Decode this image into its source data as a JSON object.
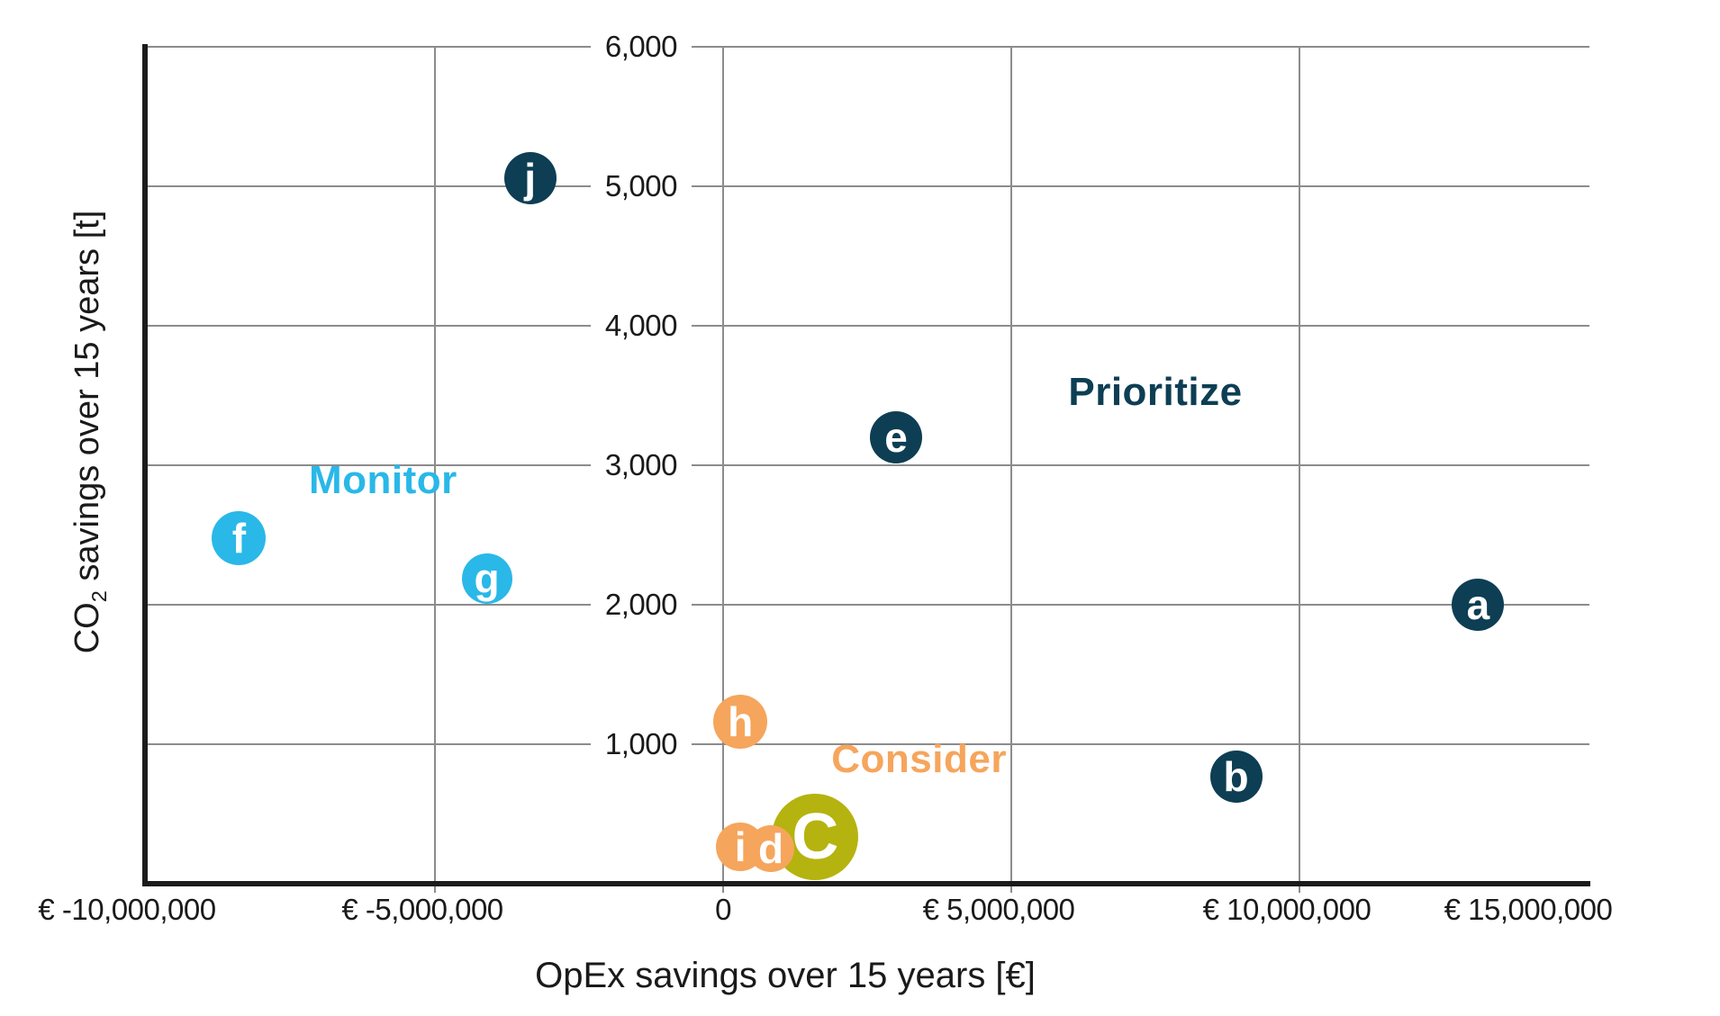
{
  "chart_data": {
    "type": "scatter",
    "title": "",
    "xlabel": "OpEx savings over 15 years [€]",
    "ylabel": {
      "prefix": "CO",
      "sub": "2",
      "suffix": " savings over 15 years [t]"
    },
    "xlim": [
      -10000000,
      15000000
    ],
    "ylim": [
      0,
      6000
    ],
    "grid": true,
    "legend": "none",
    "colors": {
      "prioritize": "#0d3e54",
      "monitor": "#29b8e8",
      "consider": "#f6a55c",
      "highlight": "#b5b30f",
      "gridline": "#8c8c8c",
      "axis": "#1b1b1b",
      "text": "#1a1a1a"
    },
    "x_ticks": [
      {
        "value": -10000000,
        "label": "€ -10,000,000",
        "gridline": false
      },
      {
        "value": -5000000,
        "label": "€ -5,000,000",
        "gridline": true
      },
      {
        "value": 0,
        "label": "0",
        "gridline": true
      },
      {
        "value": 5000000,
        "label": "€ 5,000,000",
        "gridline": true
      },
      {
        "value": 10000000,
        "label": "€ 10,000,000",
        "gridline": true
      },
      {
        "value": 15000000,
        "label": "€ 15,000,000",
        "gridline": false
      }
    ],
    "y_ticks": [
      {
        "value": 6000,
        "label": "6,000"
      },
      {
        "value": 5000,
        "label": "5,000"
      },
      {
        "value": 4000,
        "label": "4,000"
      },
      {
        "value": 3000,
        "label": "3,000"
      },
      {
        "value": 2000,
        "label": "2,000"
      },
      {
        "value": 1000,
        "label": "1,000"
      }
    ],
    "quadrant_labels": [
      {
        "text": "Monitor",
        "color": "#29b8e8",
        "x": -5900000,
        "y": 2890
      },
      {
        "text": "Prioritize",
        "color": "#0d3e54",
        "x": 7500000,
        "y": 3520
      },
      {
        "text": "Consider",
        "color": "#f6a55c",
        "x": 3400000,
        "y": 890
      }
    ],
    "points": [
      {
        "id": "a",
        "x": 13100000,
        "y": 2000,
        "color": "#0d3e54",
        "r": 29,
        "large": false
      },
      {
        "id": "b",
        "x": 8900000,
        "y": 770,
        "color": "#0d3e54",
        "r": 29,
        "large": false
      },
      {
        "id": "e",
        "x": 3000000,
        "y": 3200,
        "color": "#0d3e54",
        "r": 29,
        "large": false
      },
      {
        "id": "f",
        "x": -8400000,
        "y": 2480,
        "color": "#29b8e8",
        "r": 30,
        "large": false
      },
      {
        "id": "g",
        "x": -4100000,
        "y": 2190,
        "color": "#29b8e8",
        "r": 28,
        "large": false
      },
      {
        "id": "h",
        "x": 300000,
        "y": 1160,
        "color": "#f6a55c",
        "r": 30,
        "large": false
      },
      {
        "id": "j",
        "x": -3350000,
        "y": 5060,
        "color": "#0d3e54",
        "r": 29,
        "large": false
      },
      {
        "id": "C",
        "x": 1600000,
        "y": 335,
        "color": "#b5b30f",
        "r": 48,
        "large": true
      },
      {
        "id": "i",
        "x": 300000,
        "y": 265,
        "color": "#f6a55c",
        "r": 27,
        "large": false
      },
      {
        "id": "d",
        "x": 830000,
        "y": 250,
        "color": "#f6a55c",
        "r": 26,
        "large": false
      }
    ]
  }
}
